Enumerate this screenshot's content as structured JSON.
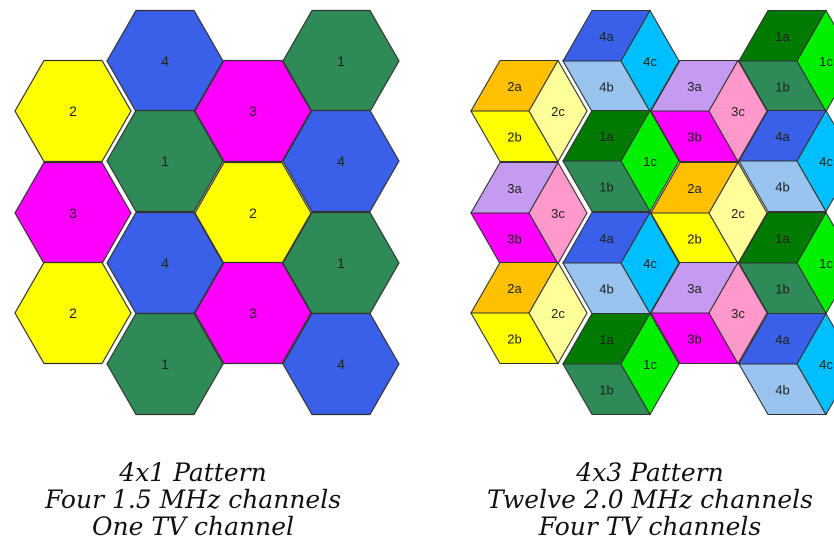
{
  "colors": {
    "yellow": "#ffff00",
    "green": "#2e8b57",
    "blue": "#3a5fe8",
    "magenta": "#ff00ff",
    "orange": "#ffc000",
    "pale_yellow": "#ffff99",
    "light_blue": "#99c4f0",
    "cyan": "#00bfff",
    "lavender": "#c49bf0",
    "pink": "#ff99cc",
    "dark_green": "#007a00",
    "bright_green": "#00ee00",
    "outline": "#333333"
  },
  "left_pattern": {
    "cells": [
      {
        "label": "4",
        "color": "blue"
      },
      {
        "label": "1",
        "color": "green"
      },
      {
        "label": "2",
        "color": "yellow"
      },
      {
        "label": "3",
        "color": "magenta"
      },
      {
        "label": "1",
        "color": "green"
      },
      {
        "label": "4",
        "color": "blue"
      },
      {
        "label": "3",
        "color": "magenta"
      },
      {
        "label": "2",
        "color": "yellow"
      },
      {
        "label": "4",
        "color": "blue"
      },
      {
        "label": "1",
        "color": "green"
      },
      {
        "label": "2",
        "color": "yellow"
      },
      {
        "label": "3",
        "color": "magenta"
      },
      {
        "label": "1",
        "color": "green"
      },
      {
        "label": "4",
        "color": "blue"
      }
    ],
    "caption": [
      "4x1 Pattern",
      "Four 1.5 MHz channels",
      "One TV channel"
    ]
  },
  "right_pattern": {
    "groups": [
      {
        "sectors": [
          {
            "label": "4a",
            "color": "blue"
          },
          {
            "label": "4b",
            "color": "light_blue"
          },
          {
            "label": "4c",
            "color": "cyan"
          }
        ]
      },
      {
        "sectors": [
          {
            "label": "1a",
            "color": "dark_green"
          },
          {
            "label": "1b",
            "color": "green"
          },
          {
            "label": "1c",
            "color": "bright_green"
          }
        ]
      },
      {
        "sectors": [
          {
            "label": "2a",
            "color": "orange"
          },
          {
            "label": "2b",
            "color": "yellow"
          },
          {
            "label": "2c",
            "color": "pale_yellow"
          }
        ]
      },
      {
        "sectors": [
          {
            "label": "3a",
            "color": "lavender"
          },
          {
            "label": "3b",
            "color": "magenta"
          },
          {
            "label": "3c",
            "color": "pink"
          }
        ]
      },
      {
        "sectors": [
          {
            "label": "1a",
            "color": "dark_green"
          },
          {
            "label": "1b",
            "color": "green"
          },
          {
            "label": "1c",
            "color": "bright_green"
          }
        ]
      },
      {
        "sectors": [
          {
            "label": "4a",
            "color": "blue"
          },
          {
            "label": "4b",
            "color": "light_blue"
          },
          {
            "label": "4c",
            "color": "cyan"
          }
        ]
      },
      {
        "sectors": [
          {
            "label": "3a",
            "color": "lavender"
          },
          {
            "label": "3b",
            "color": "magenta"
          },
          {
            "label": "3c",
            "color": "pink"
          }
        ]
      },
      {
        "sectors": [
          {
            "label": "2a",
            "color": "orange"
          },
          {
            "label": "2b",
            "color": "yellow"
          },
          {
            "label": "2c",
            "color": "pale_yellow"
          }
        ]
      },
      {
        "sectors": [
          {
            "label": "4a",
            "color": "blue"
          },
          {
            "label": "4b",
            "color": "light_blue"
          },
          {
            "label": "4c",
            "color": "cyan"
          }
        ]
      },
      {
        "sectors": [
          {
            "label": "1a",
            "color": "dark_green"
          },
          {
            "label": "1b",
            "color": "green"
          },
          {
            "label": "1c",
            "color": "bright_green"
          }
        ]
      },
      {
        "sectors": [
          {
            "label": "2a",
            "color": "orange"
          },
          {
            "label": "2b",
            "color": "yellow"
          },
          {
            "label": "2c",
            "color": "pale_yellow"
          }
        ]
      },
      {
        "sectors": [
          {
            "label": "3a",
            "color": "lavender"
          },
          {
            "label": "3b",
            "color": "magenta"
          },
          {
            "label": "3c",
            "color": "pink"
          }
        ]
      },
      {
        "sectors": [
          {
            "label": "1a",
            "color": "dark_green"
          },
          {
            "label": "1b",
            "color": "green"
          },
          {
            "label": "1c",
            "color": "bright_green"
          }
        ]
      },
      {
        "sectors": [
          {
            "label": "4a",
            "color": "blue"
          },
          {
            "label": "4b",
            "color": "light_blue"
          },
          {
            "label": "4c",
            "color": "cyan"
          }
        ]
      }
    ],
    "caption": [
      "4x3 Pattern",
      "Twelve 2.0 MHz channels",
      "Four TV channels"
    ]
  }
}
